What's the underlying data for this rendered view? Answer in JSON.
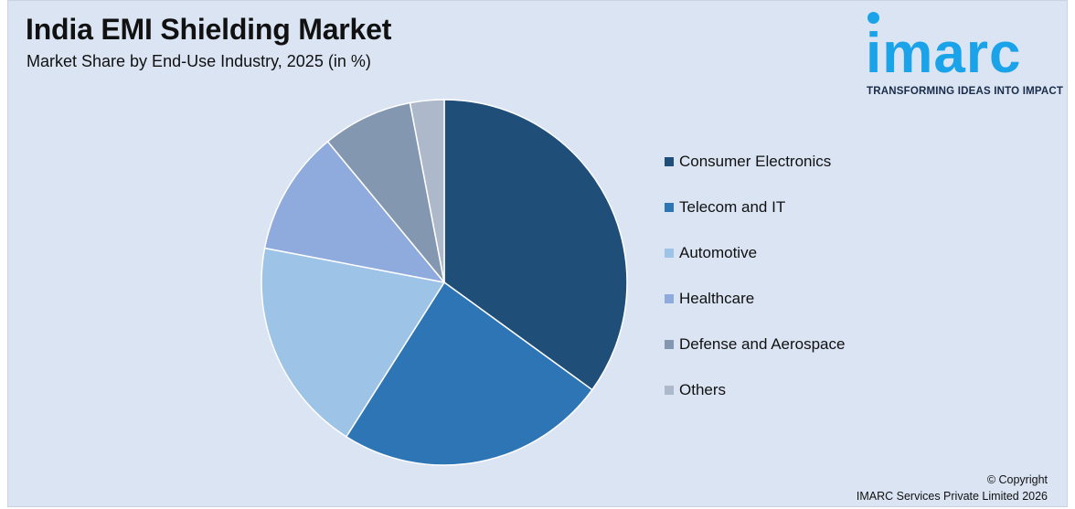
{
  "header": {
    "title": "India EMI Shielding Market",
    "subtitle": "Market Share by End-Use Industry, 2025 (in %)"
  },
  "logo": {
    "word": "imarc",
    "tagline": "TRANSFORMING IDEAS INTO IMPACT",
    "color": "#1aa3e8"
  },
  "chart_data": {
    "type": "pie",
    "title": "India EMI Shielding Market",
    "subtitle": "Market Share by End-Use Industry, 2025 (in %)",
    "legend_position": "right",
    "categories": [
      "Consumer Electronics",
      "Telecom and IT",
      "Automotive",
      "Healthcare",
      "Defense and Aerospace",
      "Others"
    ],
    "values": [
      35,
      24,
      19,
      11,
      8,
      3
    ],
    "colors": [
      "#1f4e79",
      "#2e75b6",
      "#9dc3e6",
      "#8faadc",
      "#8497b0",
      "#adb9ca"
    ]
  },
  "footer": {
    "copyright_line1": "© Copyright",
    "copyright_line2": "IMARC Services Private Limited 2026"
  }
}
